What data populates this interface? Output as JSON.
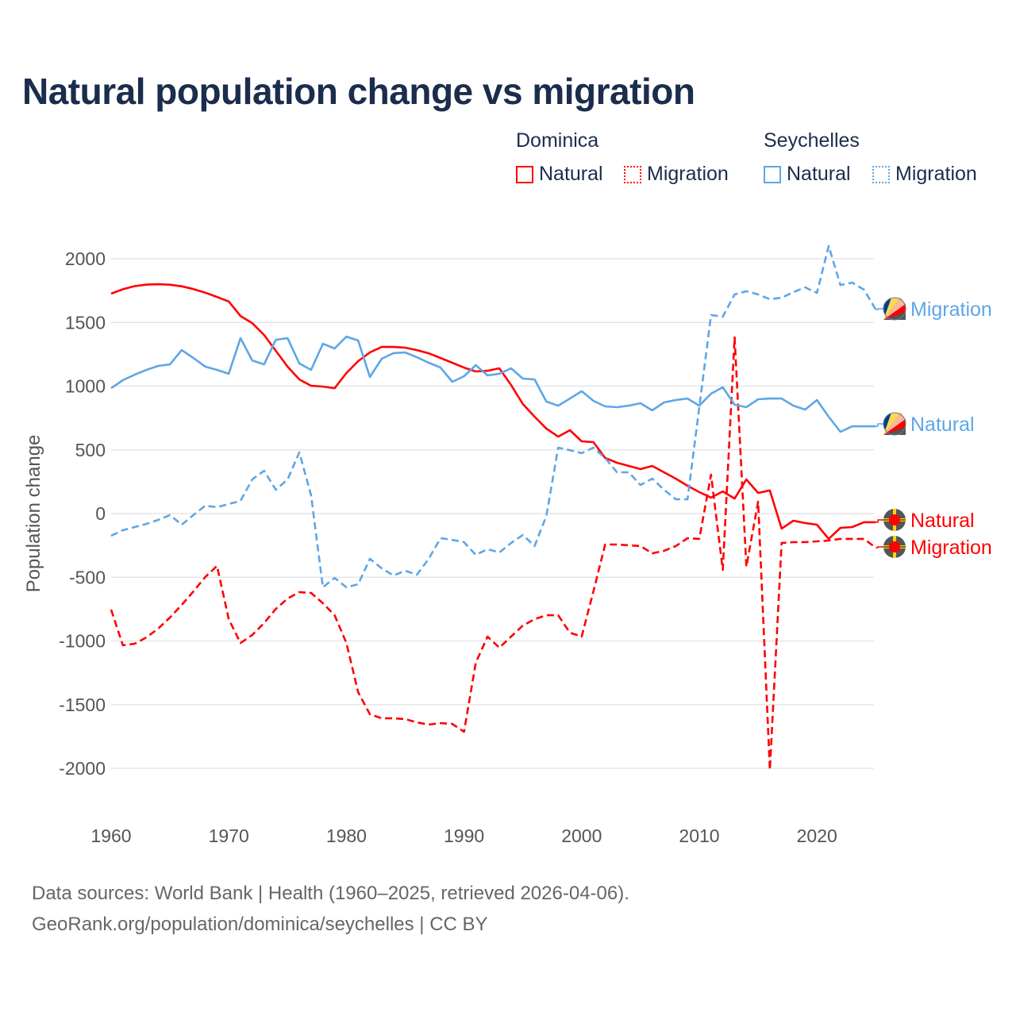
{
  "title": "Natural population change vs migration",
  "legend": {
    "groups": [
      {
        "name": "Dominica",
        "items": [
          {
            "label": "Natural",
            "style": "solid"
          },
          {
            "label": "Migration",
            "style": "dotted"
          }
        ],
        "color": "#ff0000"
      },
      {
        "name": "Seychelles",
        "items": [
          {
            "label": "Natural",
            "style": "solid"
          },
          {
            "label": "Migration",
            "style": "dotted"
          }
        ],
        "color": "#5ea6e6"
      }
    ]
  },
  "footer": {
    "line1": "Data sources: World Bank | Health (1960–2025, retrieved 2026-04-06).",
    "line2": "GeoRank.org/population/dominica/seychelles | CC BY"
  },
  "chart_data": {
    "type": "line",
    "title": "Natural population change vs migration",
    "xlabel": "",
    "ylabel": "Population change",
    "xlim": [
      1960,
      2025
    ],
    "ylim": [
      -2000,
      2000
    ],
    "xticks": [
      1960,
      1970,
      1980,
      1990,
      2000,
      2010,
      2020
    ],
    "yticks": [
      2000,
      1500,
      1000,
      500,
      0,
      -500,
      -1000,
      -1500,
      -2000
    ],
    "grid": true,
    "x_start": 1960,
    "series": [
      {
        "name": "Dominica Natural",
        "label": "Natural",
        "country": "Dominica",
        "color": "#ff0000",
        "dash": "solid",
        "flag": "dominica-flag",
        "values": [
          1726,
          1761,
          1785,
          1797,
          1800,
          1796,
          1784,
          1762,
          1734,
          1700,
          1665,
          1551,
          1495,
          1402,
          1277,
          1153,
          1053,
          1003,
          997,
          984,
          1103,
          1196,
          1265,
          1308,
          1308,
          1302,
          1283,
          1258,
          1221,
          1184,
          1146,
          1115,
          1121,
          1140,
          1009,
          860,
          760,
          667,
          604,
          654,
          567,
          561,
          436,
          399,
          374,
          349,
          374,
          324,
          274,
          218,
          168,
          125,
          174,
          118,
          268,
          162,
          181,
          -118,
          -56,
          -75,
          -87,
          -199,
          -112,
          -106,
          -68,
          -68
        ]
      },
      {
        "name": "Dominica Migration",
        "label": "Migration",
        "country": "Dominica",
        "color": "#ff0000",
        "dash": "dashed",
        "flag": "dominica-flag",
        "values": [
          -754,
          -1034,
          -1022,
          -972,
          -903,
          -816,
          -717,
          -611,
          -498,
          -411,
          -829,
          -1016,
          -953,
          -860,
          -748,
          -667,
          -617,
          -623,
          -704,
          -798,
          -1016,
          -1402,
          -1576,
          -1607,
          -1607,
          -1614,
          -1639,
          -1657,
          -1645,
          -1651,
          -1713,
          -1171,
          -966,
          -1053,
          -966,
          -879,
          -829,
          -798,
          -798,
          -935,
          -966,
          -611,
          -243,
          -243,
          -249,
          -255,
          -312,
          -293,
          -255,
          -193,
          -199,
          305,
          -442,
          1383,
          -417,
          93,
          -2012,
          -231,
          -224,
          -224,
          -218,
          -212,
          -199,
          -199,
          -199,
          -268
        ]
      },
      {
        "name": "Seychelles Natural",
        "label": "Natural",
        "country": "Seychelles",
        "color": "#5ea6e6",
        "dash": "solid",
        "flag": "seychelles-flag",
        "values": [
          984,
          1047,
          1090,
          1128,
          1159,
          1171,
          1283,
          1221,
          1153,
          1128,
          1097,
          1377,
          1202,
          1171,
          1364,
          1377,
          1178,
          1128,
          1333,
          1296,
          1389,
          1358,
          1072,
          1215,
          1259,
          1265,
          1227,
          1184,
          1146,
          1034,
          1078,
          1165,
          1084,
          1097,
          1140,
          1059,
          1053,
          879,
          847,
          903,
          960,
          885,
          841,
          835,
          847,
          866,
          810,
          872,
          891,
          903,
          847,
          941,
          991,
          854,
          835,
          897,
          903,
          903,
          847,
          816,
          891,
          760,
          642,
          685,
          685,
          685
        ]
      },
      {
        "name": "Seychelles Migration",
        "label": "Migration",
        "country": "Seychelles",
        "color": "#5ea6e6",
        "dash": "dashed",
        "flag": "seychelles-flag",
        "values": [
          -174,
          -131,
          -106,
          -81,
          -50,
          -12,
          -87,
          -12,
          62,
          50,
          75,
          100,
          268,
          336,
          187,
          268,
          480,
          143,
          -579,
          -505,
          -579,
          -555,
          -355,
          -430,
          -486,
          -449,
          -480,
          -355,
          -193,
          -206,
          -224,
          -324,
          -280,
          -305,
          -231,
          -168,
          -255,
          -19,
          517,
          498,
          474,
          517,
          436,
          324,
          324,
          224,
          274,
          187,
          112,
          112,
          835,
          1558,
          1545,
          1720,
          1745,
          1720,
          1682,
          1695,
          1738,
          1776,
          1732,
          2100,
          1794,
          1813,
          1757,
          1601
        ]
      }
    ]
  }
}
